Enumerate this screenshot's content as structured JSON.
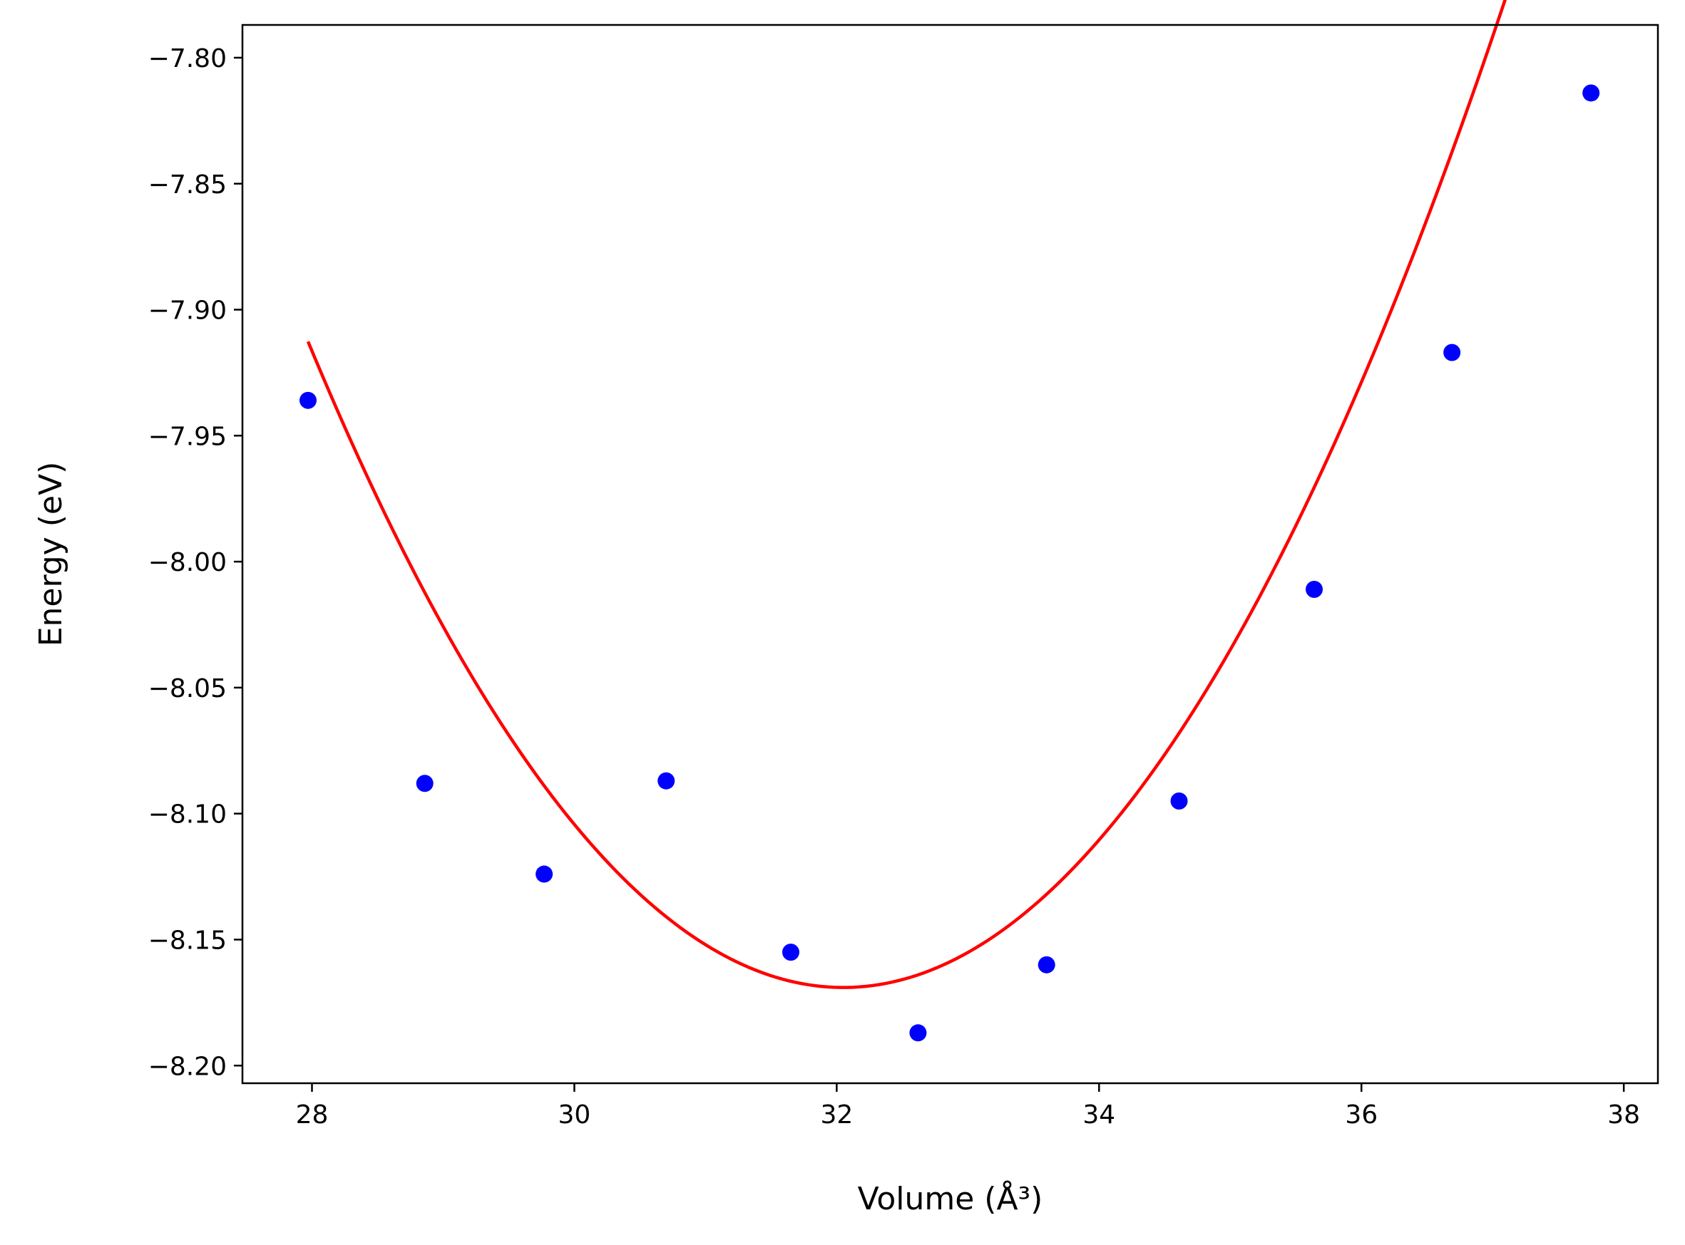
{
  "chart_data": {
    "type": "scatter",
    "xlabel": "Volume (Å³)",
    "ylabel": "Energy (eV)",
    "xlim": [
      27.47,
      38.26
    ],
    "ylim": [
      -8.207,
      -7.787
    ],
    "xticks": [
      28,
      30,
      32,
      34,
      36,
      38
    ],
    "xtick_labels": [
      "28",
      "30",
      "32",
      "34",
      "36",
      "38"
    ],
    "yticks": [
      -8.2,
      -8.15,
      -8.1,
      -8.05,
      -8.0,
      -7.95,
      -7.9,
      -7.85,
      -7.8
    ],
    "ytick_labels": [
      "−8.20",
      "−8.15",
      "−8.10",
      "−8.05",
      "−8.00",
      "−7.95",
      "−7.90",
      "−7.85",
      "−7.80"
    ],
    "grid": false,
    "colors": {
      "points": "#0000ff",
      "fit": "#ff0000",
      "axes": "#000000"
    },
    "series": [
      {
        "kind": "scatter",
        "x": [
          27.97,
          28.86,
          29.77,
          30.7,
          31.65,
          32.62,
          33.6,
          34.61,
          35.64,
          36.69,
          37.75
        ],
        "y": [
          -7.936,
          -8.088,
          -8.124,
          -8.087,
          -8.155,
          -8.187,
          -8.16,
          -8.095,
          -8.011,
          -7.917,
          -7.814
        ]
      },
      {
        "kind": "line",
        "fit": "quadratic",
        "x_range": [
          27.97,
          37.75
        ],
        "coeffs": {
          "a": 0.0154,
          "vmin": 32.05,
          "emin": -8.169
        }
      }
    ]
  }
}
